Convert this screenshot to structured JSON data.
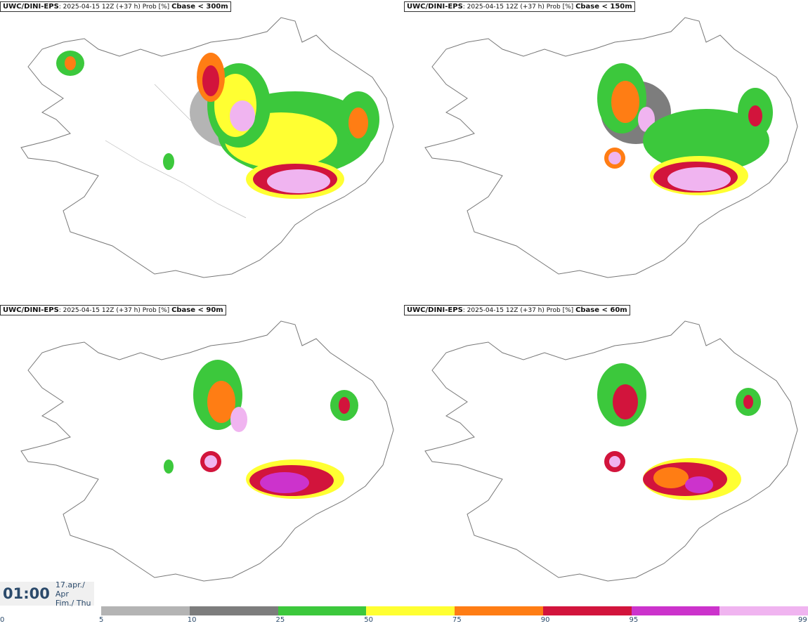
{
  "panels": [
    {
      "source": "UWC/DINI-EPS",
      "info": "2025-04-15 12Z (+37 h) Prob [%]",
      "cbase": "Cbase < 300m"
    },
    {
      "source": "UWC/DINI-EPS",
      "info": "2025-04-15 12Z (+37 h) Prob [%]",
      "cbase": "Cbase < 150m"
    },
    {
      "source": "UWC/DINI-EPS",
      "info": "2025-04-15 12Z (+37 h) Prob [%]",
      "cbase": "Cbase < 90m"
    },
    {
      "source": "UWC/DINI-EPS",
      "info": "2025-04-15 12Z (+37 h) Prob [%]",
      "cbase": "Cbase < 60m"
    }
  ],
  "time": {
    "hour": "01:00",
    "date_line1": "17.apr./ Apr",
    "date_line2": "Fim./ Thu"
  },
  "colorbar": {
    "ticks": [
      "0",
      "5",
      "10",
      "25",
      "50",
      "75",
      "90",
      "95",
      "99"
    ],
    "colors": [
      "#b4b4b4",
      "#7d7d7d",
      "#3cc83c",
      "#ffff32",
      "#ff7d14",
      "#d2143c",
      "#cc33cc",
      "#f0b4f0"
    ]
  }
}
